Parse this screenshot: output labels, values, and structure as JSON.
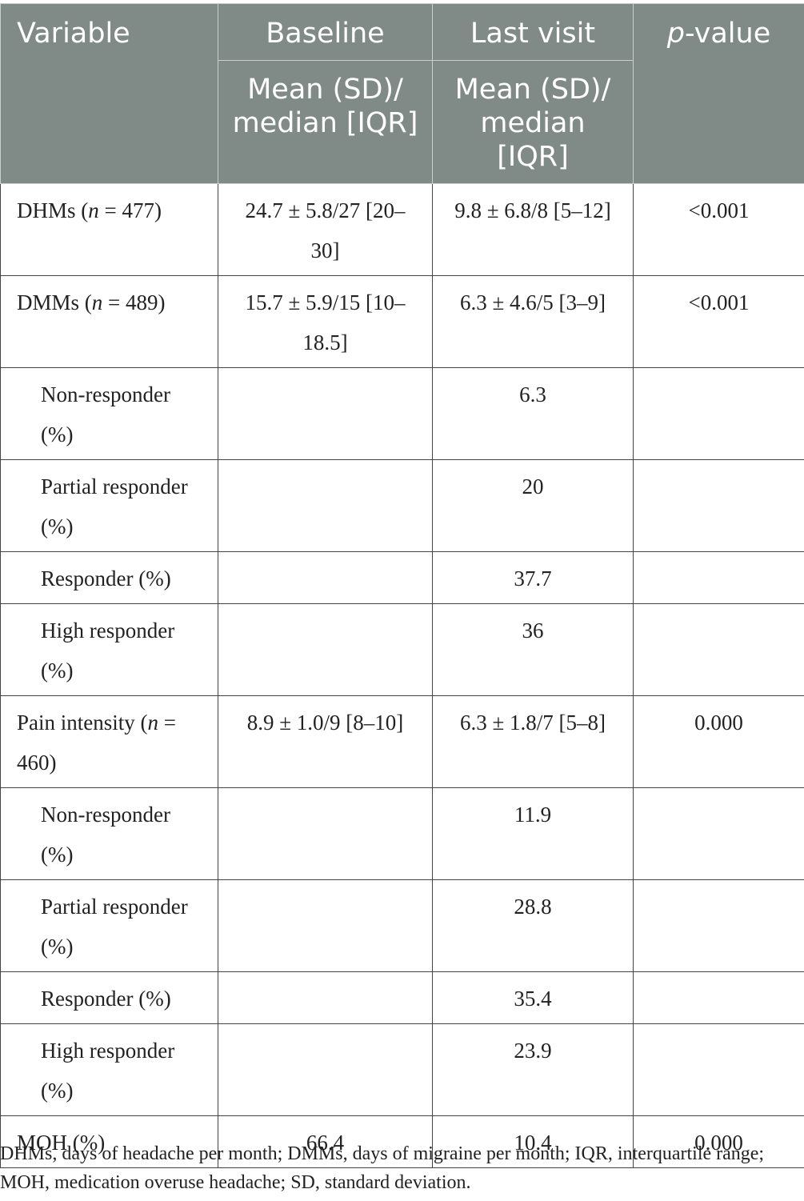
{
  "header": {
    "variable": "Variable",
    "baseline": "Baseline",
    "last_visit": "Last visit",
    "p_value_italic": "p",
    "p_value_rest": "-value",
    "baseline_sub": "Mean (SD)/ median [IQR]",
    "last_visit_sub": "Mean (SD)/ median [IQR]"
  },
  "rows": [
    {
      "label_pre": "DHMs (",
      "label_n": "n",
      "label_post": " = 477)",
      "baseline": "24.7 ± 5.8/27 [20–30]",
      "last": "9.8 ± 6.8/8 [5–12]",
      "p": "<0.001"
    },
    {
      "label_pre": "DMMs (",
      "label_n": "n",
      "label_post": " = 489)",
      "baseline": "15.7 ± 5.9/15 [10–18.5]",
      "last": "6.3 ± 4.6/5 [3–9]",
      "p": "<0.001"
    },
    {
      "label": "Non-responder (%)",
      "baseline": "",
      "last": "6.3",
      "p": ""
    },
    {
      "label": "Partial responder (%)",
      "baseline": "",
      "last": "20",
      "p": ""
    },
    {
      "label": "Responder (%)",
      "baseline": "",
      "last": "37.7",
      "p": ""
    },
    {
      "label": "High responder (%)",
      "baseline": "",
      "last": "36",
      "p": ""
    },
    {
      "label_pre": "Pain intensity (",
      "label_n": "n",
      "label_post": " = 460)",
      "baseline": "8.9 ± 1.0/9 [8–10]",
      "last": "6.3 ± 1.8/7 [5–8]",
      "p": "0.000"
    },
    {
      "label": "Non-responder (%)",
      "baseline": "",
      "last": "11.9",
      "p": ""
    },
    {
      "label": "Partial responder (%)",
      "baseline": "",
      "last": "28.8",
      "p": ""
    },
    {
      "label": "Responder (%)",
      "baseline": "",
      "last": "35.4",
      "p": ""
    },
    {
      "label": "High responder (%)",
      "baseline": "",
      "last": "23.9",
      "p": ""
    },
    {
      "label": "MOH (%)",
      "baseline": "66.4",
      "last": "10.4",
      "p": "0.000"
    }
  ],
  "footnote": "DHMs, days of headache per month; DMMs, days of migraine per month; IQR, interquartile range; MOH, medication overuse headache; SD, standard deviation."
}
